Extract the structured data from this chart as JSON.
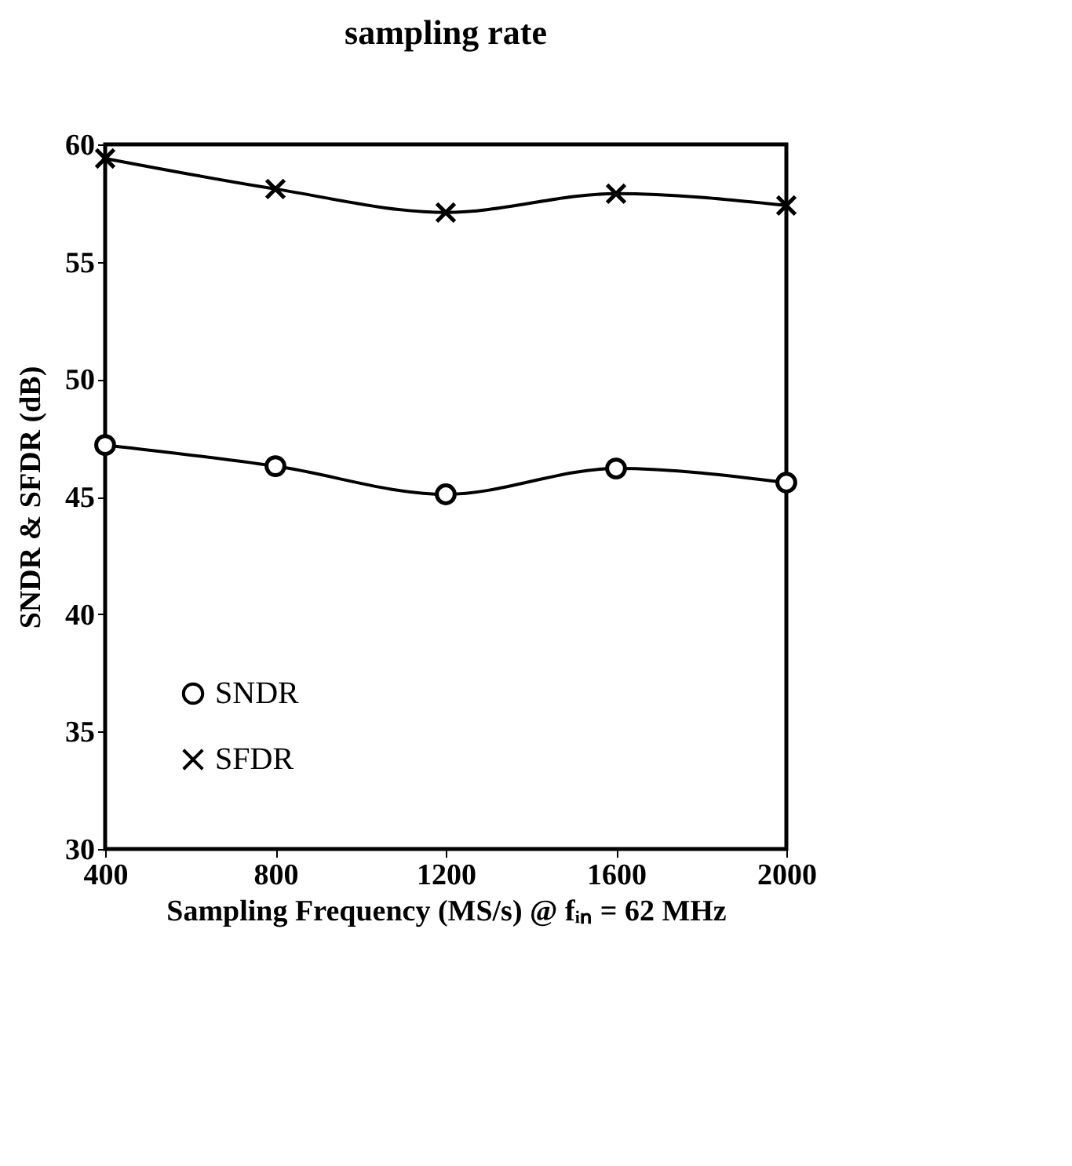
{
  "chart_data": {
    "type": "line",
    "title": "sampling rate",
    "xlabel": "Sampling Frequency (MS/s) @ fᵢₙ = 62 MHz",
    "ylabel": "SNDR & SFDR (dB)",
    "x": [
      400,
      800,
      1200,
      1600,
      2000
    ],
    "series": [
      {
        "name": "SNDR",
        "color": "#000000",
        "marker": "circle",
        "values": [
          47.2,
          46.3,
          45.1,
          46.2,
          45.6
        ]
      },
      {
        "name": "SFDR",
        "color": "#000000",
        "marker": "cross",
        "values": [
          59.4,
          58.1,
          57.1,
          57.9,
          57.4
        ]
      }
    ],
    "xlim": [
      400,
      2000
    ],
    "xticks": [
      400,
      800,
      1200,
      1600,
      2000
    ],
    "ylim": [
      30,
      60
    ],
    "yticks": [
      30,
      35,
      40,
      45,
      50,
      55,
      60
    ],
    "grid": false,
    "legend": "bottom left",
    "line_style": "solid"
  }
}
